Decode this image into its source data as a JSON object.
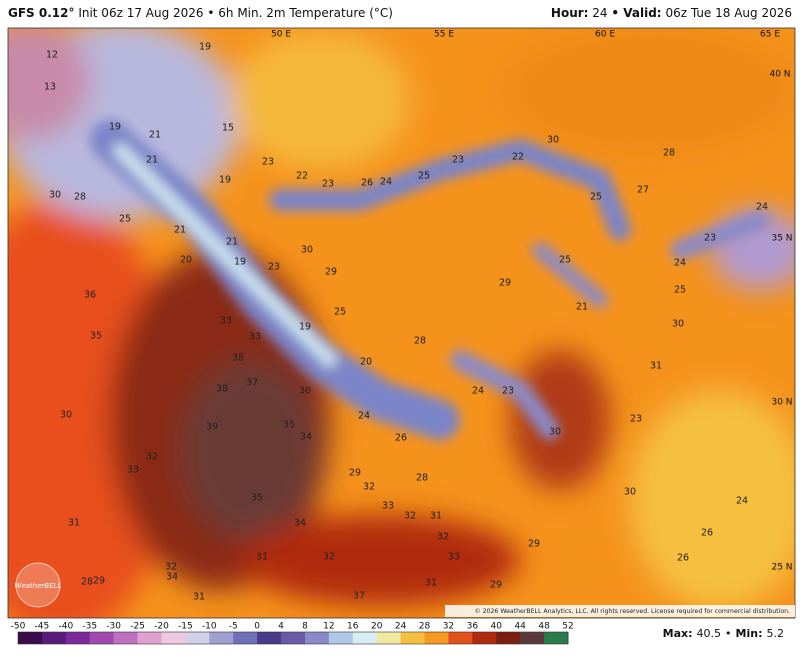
{
  "header": {
    "model": "GFS 0.12°",
    "title": "Init 06z 17 Aug 2026 • 6h Min. 2m Temperature (°C)",
    "hour_label": "Hour:",
    "hour": "24",
    "valid_label": "• Valid:",
    "valid": "06z Tue 18 Aug 2026"
  },
  "map": {
    "lon_labels": [
      "50 E",
      "55 E",
      "60 E",
      "65 E"
    ],
    "lat_labels": [
      "40 N",
      "35 N",
      "30 N",
      "25 N"
    ],
    "values": [
      12,
      19,
      13,
      19,
      21,
      15,
      21,
      23,
      19,
      22,
      23,
      26,
      24,
      25,
      23,
      22,
      30,
      28,
      27,
      25,
      24,
      23,
      24,
      30,
      28,
      25,
      21,
      21,
      20,
      19,
      23,
      30,
      29,
      29,
      25,
      25,
      21,
      36,
      35,
      33,
      33,
      19,
      25,
      28,
      38,
      20,
      30,
      31,
      38,
      37,
      30,
      24,
      23,
      30,
      24,
      39,
      35,
      34,
      26,
      30,
      23,
      32,
      33,
      29,
      28,
      32,
      30,
      24,
      35,
      33,
      32,
      31,
      31,
      34,
      32,
      26,
      31,
      32,
      33,
      29,
      26,
      32,
      34,
      28,
      29,
      31,
      37,
      31,
      29
    ],
    "logo": "WeatherBELL",
    "copyright": "© 2026 WeatherBELL Analytics, LLC. All rights reserved. License required for commercial distribution."
  },
  "colorbar": {
    "ticks": [
      -50,
      -45,
      -40,
      -35,
      -30,
      -25,
      -20,
      -15,
      -10,
      -5,
      0,
      4,
      8,
      12,
      16,
      20,
      24,
      28,
      32,
      36,
      40,
      44,
      48,
      52
    ],
    "colors": [
      "#3a0a4a",
      "#5a1a7a",
      "#7a2a9a",
      "#a04ab0",
      "#c070c0",
      "#e0a0d0",
      "#f0c8e0",
      "#d0d0e8",
      "#a0a0d0",
      "#7070b8",
      "#4a3a8a",
      "#6a5aa8",
      "#8a8ac8",
      "#b0c8e8",
      "#d8ecf4",
      "#f0e8a0",
      "#f5c040",
      "#f59a1e",
      "#e0501a",
      "#b02a10",
      "#7a2010",
      "#5a3a3a",
      "#2a7a4a"
    ]
  },
  "footer": {
    "max_label": "Max:",
    "max": "40.5",
    "sep": "•",
    "min_label": "Min:",
    "min": "5.2"
  }
}
